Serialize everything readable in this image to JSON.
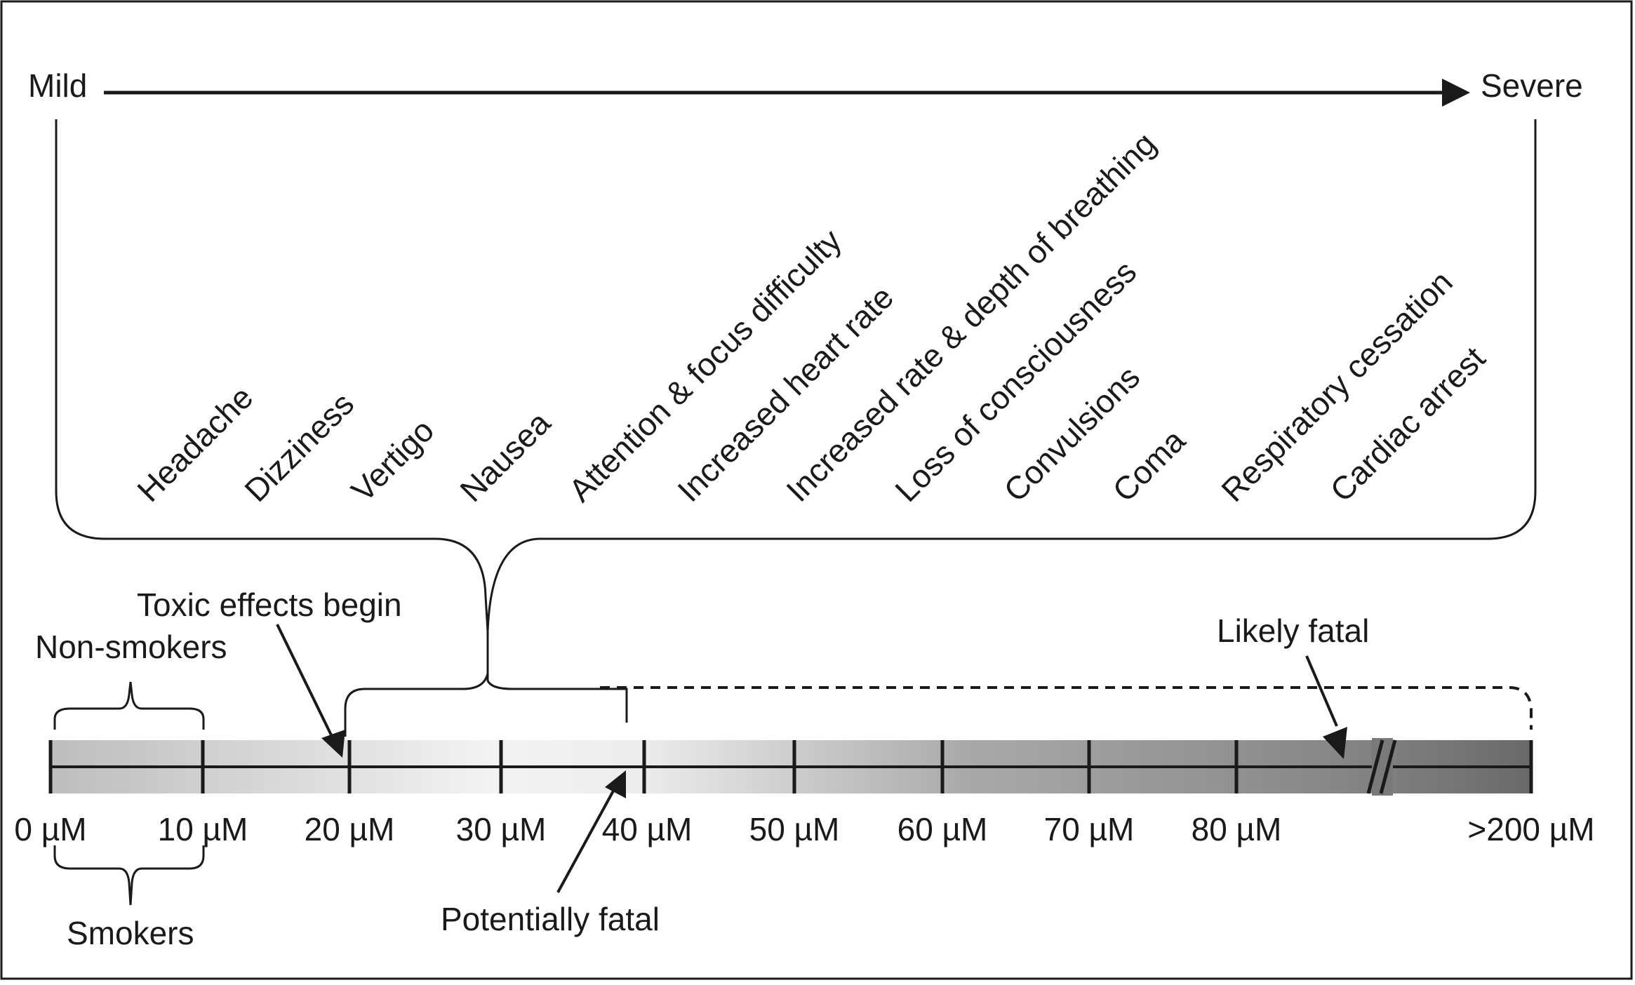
{
  "severity": {
    "mild": "Mild",
    "severe": "Severe"
  },
  "symptoms": [
    "Headache",
    "Dizziness",
    "Vertigo",
    "Nausea",
    "Attention & focus difficulty",
    "Increased heart rate",
    "Increased rate & depth of breathing",
    "Loss of consciousness",
    "Convulsions",
    "Coma",
    "Respiratory cessation",
    "Cardiac arrest"
  ],
  "scale": {
    "ticks": [
      "0 µM",
      "10 µM",
      "20 µM",
      "30 µM",
      "40 µM",
      "50 µM",
      "60 µM",
      "70 µM",
      "80 µM",
      ">200 µM"
    ]
  },
  "annotations": {
    "non_smokers": "Non-smokers",
    "smokers": "Smokers",
    "toxic_effects": "Toxic effects begin",
    "potentially_fatal": "Potentially fatal",
    "likely_fatal": "Likely fatal"
  },
  "colors": {
    "ink": "#1a1a1a",
    "bar_light": "#f4f4f4",
    "bar_mid": "#c8c8c8",
    "bar_dark": "#6e6e6e"
  }
}
